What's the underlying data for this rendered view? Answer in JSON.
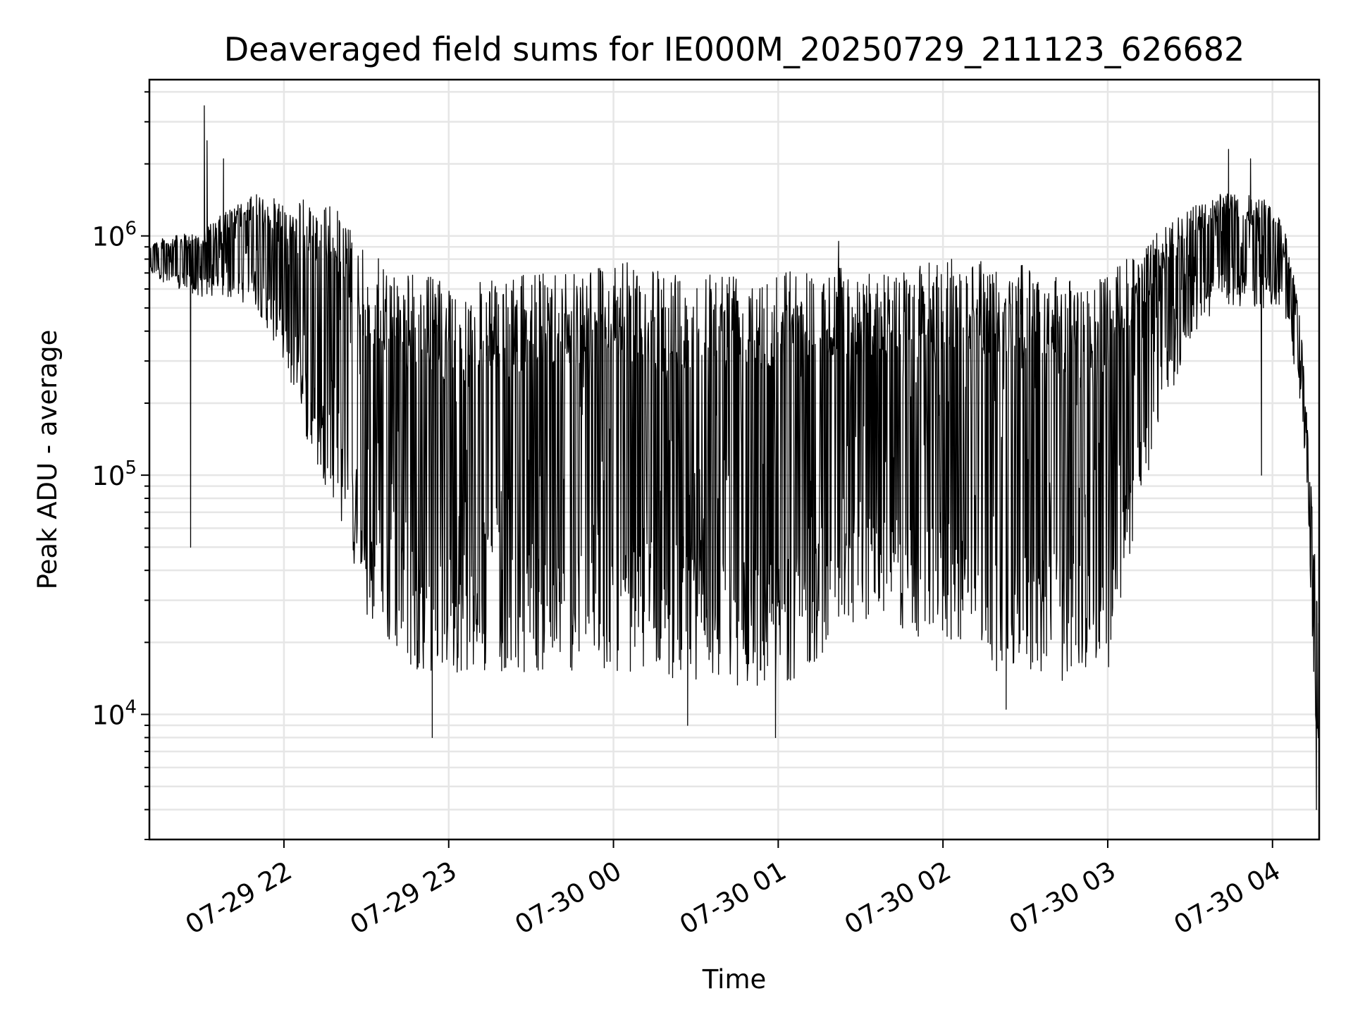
{
  "chart_data": {
    "type": "line",
    "title": "Deaveraged field sums for IE000M_20250729_211123_626682",
    "xlabel": "Time",
    "ylabel": "Peak ADU - average",
    "yscale": "log",
    "ylim": [
      3000,
      4500000
    ],
    "xlim": [
      "2025-07-29 21:11",
      "2025-07-30 04:17"
    ],
    "grid": true,
    "legend": "none",
    "line_color": "#000000",
    "x_ticks": [
      {
        "value": "2025-07-29 22:00",
        "label": "07-29 22"
      },
      {
        "value": "2025-07-29 23:00",
        "label": "07-29 23"
      },
      {
        "value": "2025-07-30 00:00",
        "label": "07-30 00"
      },
      {
        "value": "2025-07-30 01:00",
        "label": "07-30 01"
      },
      {
        "value": "2025-07-30 02:00",
        "label": "07-30 02"
      },
      {
        "value": "2025-07-30 03:00",
        "label": "07-30 03"
      },
      {
        "value": "2025-07-30 04:00",
        "label": "07-30 04"
      }
    ],
    "y_ticks": [
      {
        "value": 10000,
        "base": "10",
        "exp": "4"
      },
      {
        "value": 100000,
        "base": "10",
        "exp": "5"
      },
      {
        "value": 1000000,
        "base": "10",
        "exp": "6"
      }
    ],
    "envelope": {
      "x": [
        "2025-07-29 21:11",
        "2025-07-29 21:20",
        "2025-07-29 21:30",
        "2025-07-29 21:40",
        "2025-07-29 21:50",
        "2025-07-29 22:00",
        "2025-07-29 22:10",
        "2025-07-29 22:20",
        "2025-07-29 22:30",
        "2025-07-29 22:40",
        "2025-07-29 22:50",
        "2025-07-29 23:00",
        "2025-07-29 23:10",
        "2025-07-29 23:20",
        "2025-07-29 23:30",
        "2025-07-29 23:40",
        "2025-07-29 23:50",
        "2025-07-30 00:00",
        "2025-07-30 00:10",
        "2025-07-30 00:20",
        "2025-07-30 00:30",
        "2025-07-30 00:40",
        "2025-07-30 00:50",
        "2025-07-30 01:00",
        "2025-07-30 01:10",
        "2025-07-30 01:20",
        "2025-07-30 01:30",
        "2025-07-30 01:40",
        "2025-07-30 01:50",
        "2025-07-30 02:00",
        "2025-07-30 02:10",
        "2025-07-30 02:20",
        "2025-07-30 02:30",
        "2025-07-30 02:40",
        "2025-07-30 02:50",
        "2025-07-30 03:00",
        "2025-07-30 03:10",
        "2025-07-30 03:20",
        "2025-07-30 03:30",
        "2025-07-30 03:40",
        "2025-07-30 03:50",
        "2025-07-30 04:00",
        "2025-07-30 04:05",
        "2025-07-30 04:10",
        "2025-07-30 04:13",
        "2025-07-30 04:15",
        "2025-07-30 04:17"
      ],
      "upper": [
        950000,
        1000000,
        1050000,
        1300000,
        1500000,
        1400000,
        1450000,
        1300000,
        850000,
        750000,
        700000,
        650000,
        650000,
        650000,
        700000,
        750000,
        800000,
        800000,
        750000,
        700000,
        750000,
        750000,
        800000,
        750000,
        750000,
        750000,
        720000,
        700000,
        750000,
        800000,
        850000,
        800000,
        750000,
        700000,
        650000,
        700000,
        850000,
        1100000,
        1300000,
        1500000,
        1500000,
        1400000,
        1000000,
        500000,
        150000,
        60000,
        25000
      ],
      "lower": [
        700000,
        600000,
        550000,
        550000,
        500000,
        300000,
        120000,
        70000,
        25000,
        18000,
        15000,
        15000,
        15000,
        15000,
        15000,
        15000,
        15000,
        15000,
        15000,
        14000,
        14000,
        13000,
        13000,
        13000,
        15000,
        20000,
        25000,
        25000,
        20000,
        20000,
        20000,
        15000,
        14000,
        14000,
        13000,
        15000,
        60000,
        180000,
        350000,
        500000,
        500000,
        500000,
        420000,
        200000,
        60000,
        15000,
        4000
      ]
    },
    "spikes": [
      {
        "x": "2025-07-29 21:31",
        "y": 3500000
      },
      {
        "x": "2025-07-29 21:32",
        "y": 2500000
      },
      {
        "x": "2025-07-29 21:26",
        "y": 50000
      },
      {
        "x": "2025-07-29 21:38",
        "y": 2100000
      },
      {
        "x": "2025-07-29 22:54",
        "y": 8000
      },
      {
        "x": "2025-07-30 00:59",
        "y": 8000
      },
      {
        "x": "2025-07-30 00:27",
        "y": 9000
      },
      {
        "x": "2025-07-30 01:22",
        "y": 950000
      },
      {
        "x": "2025-07-30 02:23",
        "y": 10500
      },
      {
        "x": "2025-07-30 03:44",
        "y": 2300000
      },
      {
        "x": "2025-07-30 03:52",
        "y": 2100000
      },
      {
        "x": "2025-07-30 03:56",
        "y": 100000
      },
      {
        "x": "2025-07-30 04:16",
        "y": 4000
      }
    ]
  }
}
